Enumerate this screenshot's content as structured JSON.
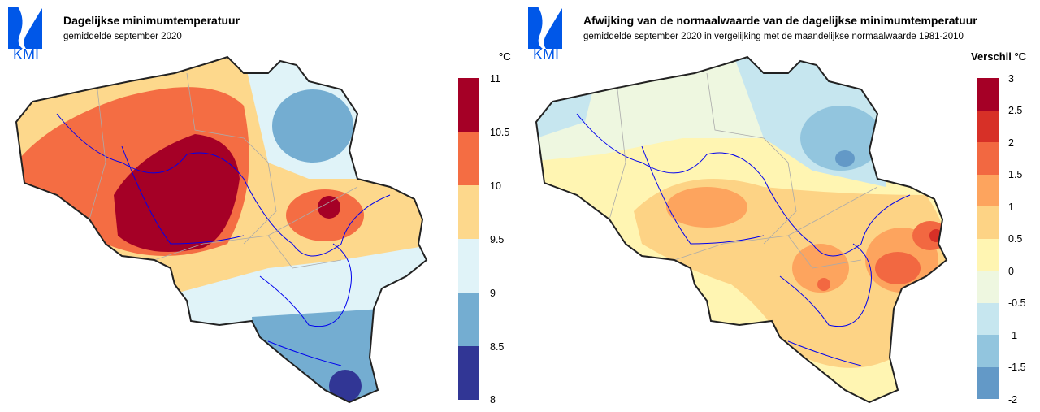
{
  "left": {
    "logo_text": "KMI",
    "title": "Dagelijkse minimumtemperatuur",
    "subtitle": "gemiddelde september 2020",
    "unit": "°C",
    "legend_ticks": [
      "11",
      "10.5",
      "10",
      "9.5",
      "9",
      "8.5",
      "8"
    ],
    "legend_colors": [
      "#a50026",
      "#f46d43",
      "#fdd88c",
      "#e0f3f8",
      "#74add1",
      "#313695"
    ]
  },
  "right": {
    "logo_text": "KMI",
    "title": "Afwijking van de normaalwaarde van de dagelijkse minimumtemperatuur",
    "subtitle": "gemiddelde september 2020 in vergelijking met de maandelijkse normaalwaarde 1981-2010",
    "unit": "Verschil °C",
    "legend_ticks": [
      "3",
      "2.5",
      "2",
      "1.5",
      "1",
      "0.5",
      "0",
      "-0.5",
      "-1",
      "-1.5",
      "-2"
    ],
    "legend_colors": [
      "#a50026",
      "#d73027",
      "#f26841",
      "#fda45e",
      "#fdd385",
      "#fff5b2",
      "#eef7e0",
      "#c6e6ef",
      "#92c5de",
      "#6399c7"
    ]
  }
}
